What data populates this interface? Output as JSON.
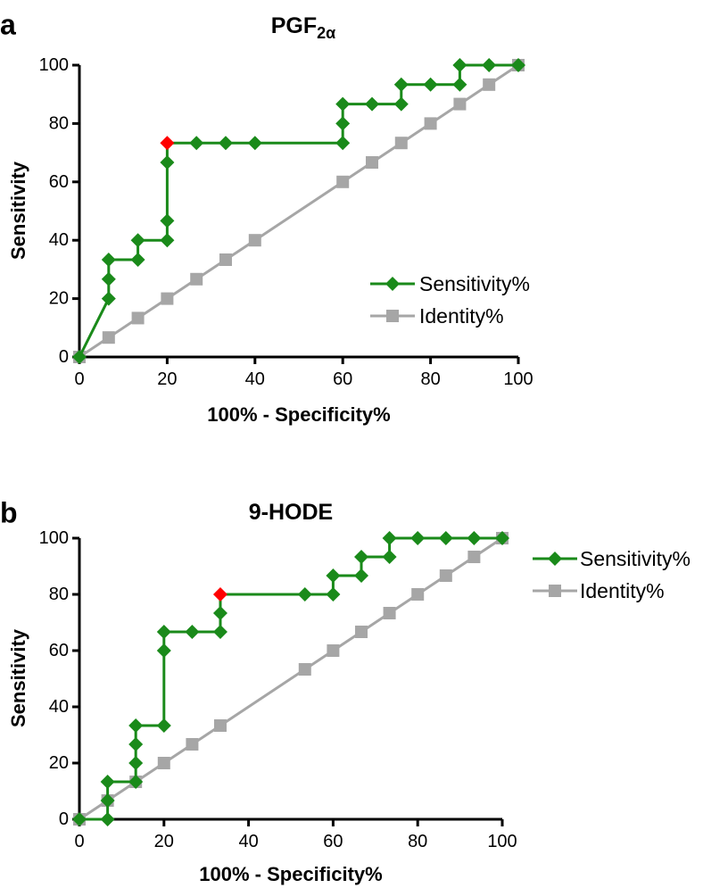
{
  "chart_data": [
    {
      "panel_label": "a",
      "type": "line",
      "title": "PGF",
      "title_sub": "2α",
      "xlabel": "100% - Specificity%",
      "ylabel": "Sensitivity",
      "xlim": [
        0,
        100
      ],
      "ylim": [
        0,
        100
      ],
      "xticks": [
        0,
        20,
        40,
        60,
        80,
        100
      ],
      "yticks": [
        0,
        20,
        40,
        60,
        80,
        100
      ],
      "legend_position": "right",
      "colors": {
        "sensitivity": "#1a8a1a",
        "identity": "#a6a6a6",
        "highlight": "#ff0000"
      },
      "series": [
        {
          "name": "Sensitivity%",
          "marker": "diamond",
          "points": [
            [
              0,
              0
            ],
            [
              6.67,
              20
            ],
            [
              6.67,
              26.67
            ],
            [
              6.67,
              33.33
            ],
            [
              13.33,
              33.33
            ],
            [
              13.33,
              40
            ],
            [
              20,
              40
            ],
            [
              20,
              46.67
            ],
            [
              20,
              66.67
            ],
            [
              20,
              73.33
            ],
            [
              26.67,
              73.33
            ],
            [
              33.33,
              73.33
            ],
            [
              40,
              73.33
            ],
            [
              60,
              73.33
            ],
            [
              60,
              80
            ],
            [
              60,
              86.67
            ],
            [
              66.67,
              86.67
            ],
            [
              73.33,
              86.67
            ],
            [
              73.33,
              93.33
            ],
            [
              80,
              93.33
            ],
            [
              86.67,
              93.33
            ],
            [
              86.67,
              100
            ],
            [
              93.33,
              100
            ],
            [
              100,
              100
            ]
          ],
          "highlight": [
            20,
            73.33
          ]
        },
        {
          "name": "Identity%",
          "marker": "square",
          "points": [
            [
              0,
              0
            ],
            [
              6.67,
              6.67
            ],
            [
              13.33,
              13.33
            ],
            [
              20,
              20
            ],
            [
              26.67,
              26.67
            ],
            [
              33.33,
              33.33
            ],
            [
              40,
              40
            ],
            [
              60,
              60
            ],
            [
              66.67,
              66.67
            ],
            [
              73.33,
              73.33
            ],
            [
              80,
              80
            ],
            [
              86.67,
              86.67
            ],
            [
              93.33,
              93.33
            ],
            [
              100,
              100
            ]
          ]
        }
      ]
    },
    {
      "panel_label": "b",
      "type": "line",
      "title": "9-HODE",
      "title_sub": "",
      "xlabel": "100% - Specificity%",
      "ylabel": "Sensitivity",
      "xlim": [
        0,
        100
      ],
      "ylim": [
        0,
        100
      ],
      "xticks": [
        0,
        20,
        40,
        60,
        80,
        100
      ],
      "yticks": [
        0,
        20,
        40,
        60,
        80,
        100
      ],
      "legend_position": "top-right outside",
      "colors": {
        "sensitivity": "#1a8a1a",
        "identity": "#a6a6a6",
        "highlight": "#ff0000"
      },
      "series": [
        {
          "name": "Sensitivity%",
          "marker": "diamond",
          "points": [
            [
              0,
              0
            ],
            [
              6.67,
              0
            ],
            [
              6.67,
              6.67
            ],
            [
              6.67,
              13.33
            ],
            [
              13.33,
              13.33
            ],
            [
              13.33,
              20
            ],
            [
              13.33,
              26.67
            ],
            [
              13.33,
              33.33
            ],
            [
              20,
              33.33
            ],
            [
              20,
              60
            ],
            [
              20,
              66.67
            ],
            [
              26.67,
              66.67
            ],
            [
              33.33,
              66.67
            ],
            [
              33.33,
              73.33
            ],
            [
              33.33,
              80
            ],
            [
              53.33,
              80
            ],
            [
              60,
              80
            ],
            [
              60,
              86.67
            ],
            [
              66.67,
              86.67
            ],
            [
              66.67,
              93.33
            ],
            [
              73.33,
              93.33
            ],
            [
              73.33,
              100
            ],
            [
              80,
              100
            ],
            [
              86.67,
              100
            ],
            [
              93.33,
              100
            ],
            [
              100,
              100
            ]
          ],
          "highlight": [
            33.33,
            80
          ]
        },
        {
          "name": "Identity%",
          "marker": "square",
          "points": [
            [
              0,
              0
            ],
            [
              6.67,
              6.67
            ],
            [
              13.33,
              13.33
            ],
            [
              20,
              20
            ],
            [
              26.67,
              26.67
            ],
            [
              33.33,
              33.33
            ],
            [
              53.33,
              53.33
            ],
            [
              60,
              60
            ],
            [
              66.67,
              66.67
            ],
            [
              73.33,
              73.33
            ],
            [
              80,
              80
            ],
            [
              86.67,
              86.67
            ],
            [
              93.33,
              93.33
            ],
            [
              100,
              100
            ]
          ]
        }
      ]
    }
  ]
}
